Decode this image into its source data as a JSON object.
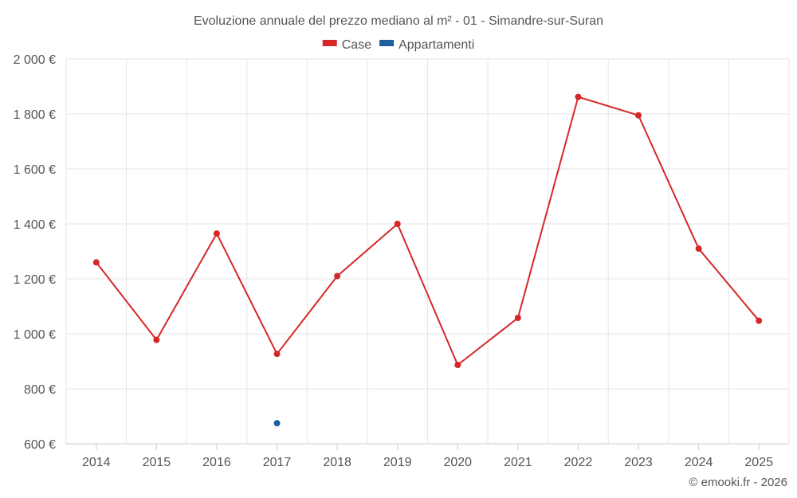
{
  "chart_data": {
    "type": "line",
    "title": "Evoluzione annuale del prezzo mediano al m² - 01 - Simandre-sur-Suran",
    "categories": [
      "2014",
      "2015",
      "2016",
      "2017",
      "2018",
      "2019",
      "2020",
      "2021",
      "2022",
      "2023",
      "2024",
      "2025"
    ],
    "series": [
      {
        "name": "Case",
        "color": "#d62728",
        "values": [
          1260,
          978,
          1365,
          927,
          1210,
          1400,
          887,
          1058,
          1862,
          1795,
          1310,
          1048
        ]
      },
      {
        "name": "Appartamenti",
        "color": "#1f5f9e",
        "values": [
          null,
          null,
          null,
          675,
          null,
          null,
          null,
          null,
          null,
          null,
          null,
          null
        ]
      }
    ],
    "ylim": [
      600,
      2000
    ],
    "yticks": [
      600,
      800,
      1000,
      1200,
      1400,
      1600,
      1800,
      2000
    ],
    "ytick_labels": [
      "600 €",
      "800 €",
      "1 000 €",
      "1 200 €",
      "1 400 €",
      "1 600 €",
      "1 800 €",
      "2 000 €"
    ],
    "grid": true,
    "legend_position": "top-center",
    "xlabel": "",
    "ylabel": ""
  },
  "credit": "© emooki.fr - 2026"
}
